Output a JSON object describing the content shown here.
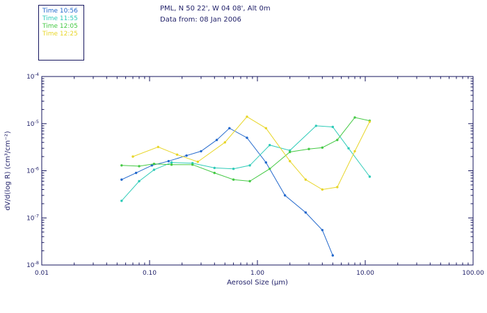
{
  "header": {
    "location": "PML, N 50 22', W 04 08', Alt 0m",
    "date": "Data from: 08 Jan 2006"
  },
  "legend": {
    "items": [
      {
        "label": "Time 10:56",
        "color": "#2268cc"
      },
      {
        "label": "Time 11:55",
        "color": "#2ecbb8"
      },
      {
        "label": "Time 12:05",
        "color": "#44c944"
      },
      {
        "label": "Time 12:25",
        "color": "#e8d629"
      }
    ]
  },
  "colors": {
    "text": "#22226a",
    "axis": "#15155e",
    "background": "#ffffff"
  },
  "chart_data": {
    "type": "line",
    "title": "",
    "xlabel": "Aerosol Size (μm)",
    "ylabel": "dV/d(log R) (cm³/cm⁻²)",
    "xscale": "log",
    "yscale": "log",
    "xlim": [
      0.01,
      100
    ],
    "ylim": [
      1e-08,
      0.0001
    ],
    "grid": false,
    "legend_position": "outside-top-left",
    "xticks": [
      {
        "v": 0.01,
        "label": "0.01"
      },
      {
        "v": 0.1,
        "label": "0.10"
      },
      {
        "v": 1,
        "label": "1.00"
      },
      {
        "v": 10,
        "label": "10.00"
      },
      {
        "v": 100,
        "label": "100.00"
      }
    ],
    "yticks": [
      {
        "v": 1e-08,
        "base": "10",
        "exp": "-8"
      },
      {
        "v": 1e-07,
        "base": "10",
        "exp": "-7"
      },
      {
        "v": 1e-06,
        "base": "10",
        "exp": "-6"
      },
      {
        "v": 1e-05,
        "base": "10",
        "exp": "-5"
      },
      {
        "v": 0.0001,
        "base": "10",
        "exp": "-4"
      }
    ],
    "series": [
      {
        "name": "Time 10:56",
        "color": "#2268cc",
        "points": [
          [
            0.055,
            6.5e-07
          ],
          [
            0.075,
            9e-07
          ],
          [
            0.105,
            1.3e-06
          ],
          [
            0.15,
            1.6e-06
          ],
          [
            0.22,
            2.1e-06
          ],
          [
            0.3,
            2.6e-06
          ],
          [
            0.42,
            4.5e-06
          ],
          [
            0.55,
            8e-06
          ],
          [
            0.8,
            5e-06
          ],
          [
            1.2,
            1.5e-06
          ],
          [
            1.8,
            3e-07
          ],
          [
            2.8,
            1.3e-07
          ],
          [
            4,
            5.5e-08
          ],
          [
            5,
            1.6e-08
          ]
        ]
      },
      {
        "name": "Time 11:55",
        "color": "#2ecbb8",
        "points": [
          [
            0.055,
            2.3e-07
          ],
          [
            0.08,
            6e-07
          ],
          [
            0.11,
            1.05e-06
          ],
          [
            0.16,
            1.5e-06
          ],
          [
            0.25,
            1.45e-06
          ],
          [
            0.4,
            1.15e-06
          ],
          [
            0.6,
            1.1e-06
          ],
          [
            0.85,
            1.3e-06
          ],
          [
            1.3,
            3.5e-06
          ],
          [
            2,
            2.7e-06
          ],
          [
            3.5,
            9e-06
          ],
          [
            5,
            8.5e-06
          ],
          [
            7,
            3e-06
          ],
          [
            11,
            7.5e-07
          ]
        ]
      },
      {
        "name": "Time 12:05",
        "color": "#44c944",
        "points": [
          [
            0.055,
            1.3e-06
          ],
          [
            0.08,
            1.25e-06
          ],
          [
            0.11,
            1.4e-06
          ],
          [
            0.16,
            1.35e-06
          ],
          [
            0.25,
            1.35e-06
          ],
          [
            0.4,
            9e-07
          ],
          [
            0.6,
            6.5e-07
          ],
          [
            0.85,
            6e-07
          ],
          [
            1.3,
            1.1e-06
          ],
          [
            2,
            2.5e-06
          ],
          [
            3,
            2.9e-06
          ],
          [
            4,
            3.1e-06
          ],
          [
            5.5,
            4.5e-06
          ],
          [
            8,
            1.35e-05
          ],
          [
            11,
            1.15e-05
          ]
        ]
      },
      {
        "name": "Time 12:25",
        "color": "#e8d629",
        "points": [
          [
            0.07,
            2e-06
          ],
          [
            0.12,
            3.2e-06
          ],
          [
            0.18,
            2.2e-06
          ],
          [
            0.28,
            1.55e-06
          ],
          [
            0.5,
            4e-06
          ],
          [
            0.8,
            1.4e-05
          ],
          [
            1.2,
            8e-06
          ],
          [
            2,
            1.6e-06
          ],
          [
            2.8,
            6.5e-07
          ],
          [
            4,
            4e-07
          ],
          [
            5.5,
            4.5e-07
          ],
          [
            8,
            2.6e-06
          ],
          [
            11,
            1.1e-05
          ]
        ]
      }
    ]
  }
}
